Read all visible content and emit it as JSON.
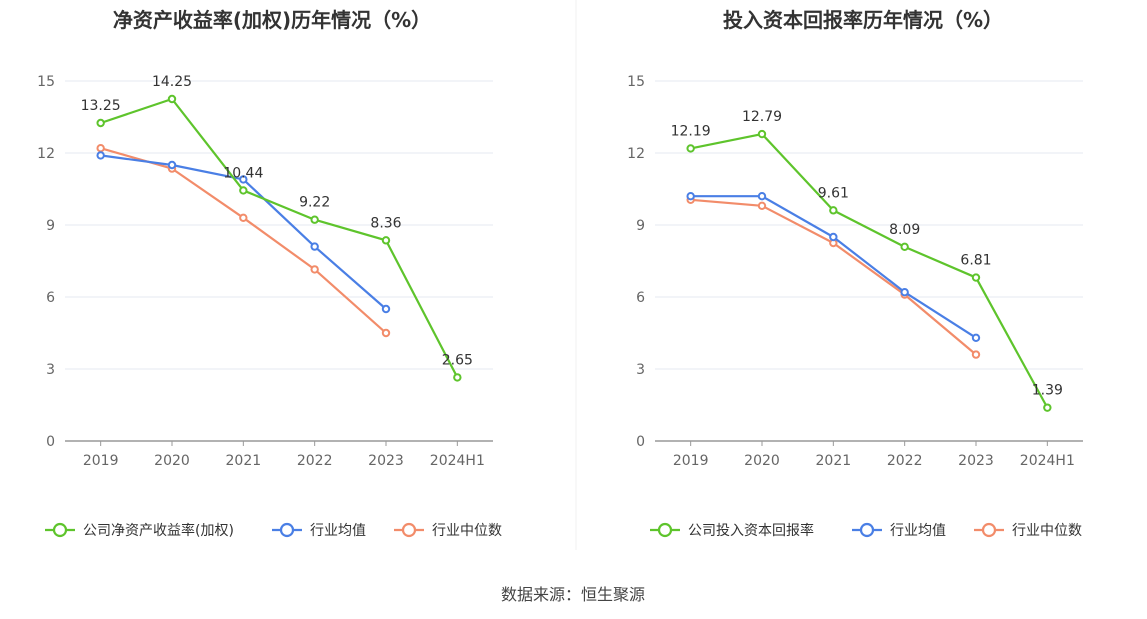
{
  "source": "数据来源：恒生聚源",
  "colors": {
    "company": "#5ec42c",
    "industry_avg": "#4a7fe5",
    "industry_median": "#f28c6a"
  },
  "chart_data": [
    {
      "type": "line",
      "title": "净资产收益率(加权)历年情况（%）",
      "categories": [
        "2019",
        "2020",
        "2021",
        "2022",
        "2023",
        "2024H1"
      ],
      "ylim": [
        0,
        15
      ],
      "yticks": [
        0,
        3,
        6,
        9,
        12,
        15
      ],
      "grid": true,
      "legend_position": "bottom",
      "series": [
        {
          "name": "公司净资产收益率(加权)",
          "color_key": "company",
          "values": [
            13.25,
            14.25,
            10.44,
            9.22,
            8.36,
            2.65
          ],
          "labels": true
        },
        {
          "name": "行业均值",
          "color_key": "industry_avg",
          "values": [
            11.9,
            11.5,
            10.9,
            8.1,
            5.5,
            null
          ],
          "labels": false
        },
        {
          "name": "行业中位数",
          "color_key": "industry_median",
          "values": [
            12.2,
            11.35,
            9.3,
            7.15,
            4.5,
            null
          ],
          "labels": false
        }
      ]
    },
    {
      "type": "line",
      "title": "投入资本回报率历年情况（%）",
      "categories": [
        "2019",
        "2020",
        "2021",
        "2022",
        "2023",
        "2024H1"
      ],
      "ylim": [
        0,
        15
      ],
      "yticks": [
        0,
        3,
        6,
        9,
        12,
        15
      ],
      "grid": true,
      "legend_position": "bottom",
      "series": [
        {
          "name": "公司投入资本回报率",
          "color_key": "company",
          "values": [
            12.19,
            12.79,
            9.61,
            8.09,
            6.81,
            1.39
          ],
          "labels": true
        },
        {
          "name": "行业均值",
          "color_key": "industry_avg",
          "values": [
            10.2,
            10.2,
            8.5,
            6.2,
            4.3,
            null
          ],
          "labels": false
        },
        {
          "name": "行业中位数",
          "color_key": "industry_median",
          "values": [
            10.05,
            9.8,
            8.25,
            6.1,
            3.6,
            null
          ],
          "labels": false
        }
      ]
    }
  ]
}
